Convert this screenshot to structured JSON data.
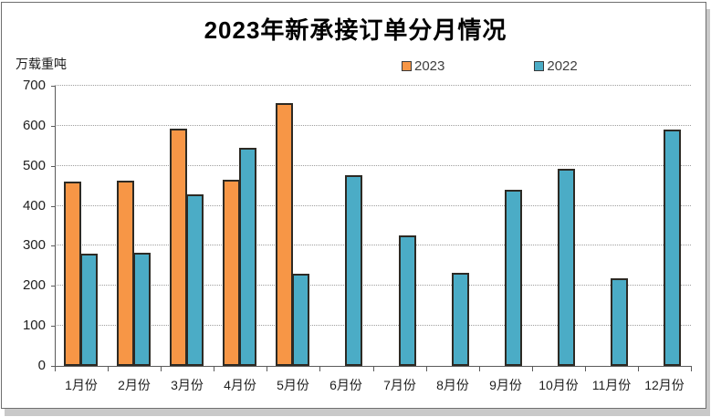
{
  "chart": {
    "title": "2023年新承接订单分月情况",
    "unit_label": "万载重吨"
  },
  "chart_data": {
    "type": "bar",
    "title": "2023年新承接订单分月情况",
    "ylabel": "万载重吨",
    "xlabel": "",
    "categories": [
      "1月份",
      "2月份",
      "3月份",
      "4月份",
      "5月份",
      "6月份",
      "7月份",
      "8月份",
      "9月份",
      "10月份",
      "11月份",
      "12月份"
    ],
    "series": [
      {
        "name": "2023",
        "color": "#F79646",
        "values": [
          460,
          462,
          593,
          466,
          657,
          null,
          null,
          null,
          null,
          null,
          null,
          null
        ]
      },
      {
        "name": "2022",
        "color": "#4BACC6",
        "values": [
          281,
          283,
          428,
          545,
          230,
          477,
          325,
          232,
          440,
          493,
          220,
          591
        ]
      }
    ],
    "ylim": [
      0,
      700
    ],
    "ytick_interval": 100,
    "grid": "horizontal-dotted",
    "legend_position": "top",
    "bar_outline_color": "#2d2a24"
  }
}
